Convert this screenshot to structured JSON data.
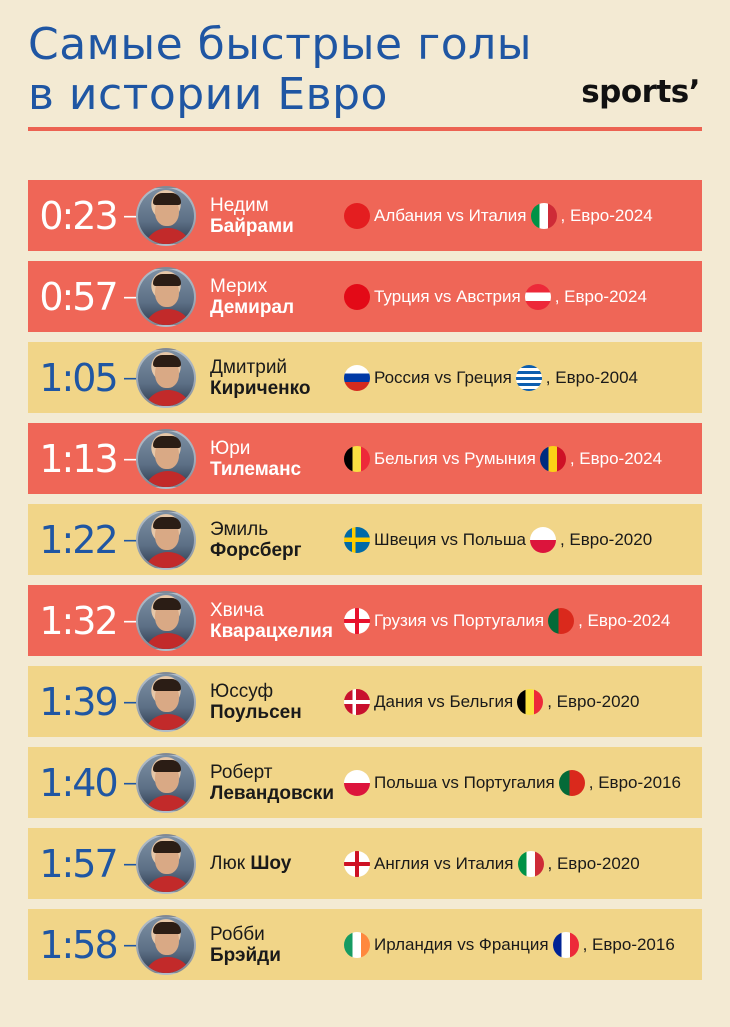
{
  "title_lines": [
    "Самые быстрые голы",
    "в истории Евро"
  ],
  "logo": "sports’",
  "rows": [
    {
      "time": "0:23",
      "first": "Недим",
      "last": "Байрами",
      "flag1": "albania",
      "teams": "Албания vs Италия",
      "flag2": "italy",
      "tourn": ", Евро-2024",
      "theme": "red"
    },
    {
      "time": "0:57",
      "first": "Мерих",
      "last": "Демирал",
      "flag1": "turkey",
      "teams": "Турция vs Австрия",
      "flag2": "austria",
      "tourn": ", Евро-2024",
      "theme": "red"
    },
    {
      "time": "1:05",
      "first": "Дмитрий",
      "last": "Кириченко",
      "flag1": "russia",
      "teams": "Россия vs Греция",
      "flag2": "greece",
      "tourn": ", Евро-2004",
      "theme": "yellow"
    },
    {
      "time": "1:13",
      "first": "Юри",
      "last": "Тилеманс",
      "flag1": "belgium",
      "teams": "Бельгия vs Румыния",
      "flag2": "romania",
      "tourn": ", Евро-2024",
      "theme": "red"
    },
    {
      "time": "1:22",
      "first": "Эмиль",
      "last": "Форсберг",
      "flag1": "sweden",
      "teams": "Швеция vs Польша",
      "flag2": "poland",
      "tourn": ", Евро-2020",
      "theme": "yellow"
    },
    {
      "time": "1:32",
      "first": "Хвича",
      "last": "Кварацхелия",
      "flag1": "georgia",
      "teams": "Грузия vs Португалия",
      "flag2": "portugal",
      "tourn": ", Евро-2024",
      "theme": "red"
    },
    {
      "time": "1:39",
      "first": "Юссуф",
      "last": "Поульсен",
      "flag1": "denmark",
      "teams": "Дания vs Бельгия",
      "flag2": "belgium",
      "tourn": ", Евро-2020",
      "theme": "yellow"
    },
    {
      "time": "1:40",
      "first": "Роберт",
      "last": "Левандовски",
      "flag1": "poland",
      "teams": "Польша vs Португалия",
      "flag2": "portugal",
      "tourn": ", Евро-2016",
      "theme": "yellow"
    },
    {
      "time": "1:57",
      "first": "Люк",
      "last": "Шоу",
      "flag1": "england",
      "teams": "Англия vs Италия",
      "flag2": "italy",
      "tourn": ", Евро-2020",
      "theme": "yellow",
      "inline": true
    },
    {
      "time": "1:58",
      "first": "Робби",
      "last": "Брэйди",
      "flag1": "ireland",
      "teams": "Ирландия vs Франция",
      "flag2": "france",
      "tourn": ", Евро-2016",
      "theme": "yellow"
    }
  ],
  "colors": {
    "background": "#f3ead3",
    "title_blue": "#1f56a3",
    "row_red": "#ef6657",
    "row_yellow": "#f1d588",
    "rule": "#ec6352"
  }
}
